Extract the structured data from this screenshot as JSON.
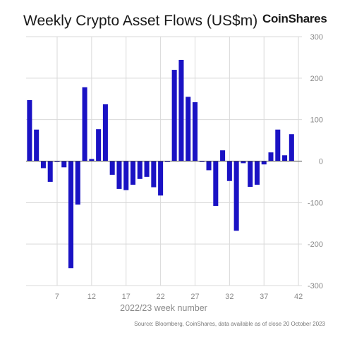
{
  "brand": "CoinShares",
  "source": "Source: Bloomberg, CoinShares, data available as of close 20 October 2023",
  "colors": {
    "bar": "#1a12c4",
    "grid": "#d9d9d9",
    "zero": "#444444"
  },
  "chart_data": {
    "type": "bar",
    "title": "Weekly Crypto Asset Flows (US$m)",
    "xlabel": "2022/23 week number",
    "ylabel": "",
    "ylim": [
      -300,
      300
    ],
    "yticks": [
      300,
      200,
      100,
      0,
      -100,
      -200,
      -300
    ],
    "xticks": [
      7,
      12,
      17,
      22,
      27,
      32,
      37,
      42
    ],
    "grid": true,
    "x": [
      3,
      4,
      5,
      6,
      7,
      8,
      9,
      10,
      11,
      12,
      13,
      14,
      15,
      16,
      17,
      18,
      19,
      20,
      21,
      22,
      23,
      24,
      25,
      26,
      27,
      28,
      29,
      30,
      31,
      32,
      33,
      34,
      35,
      36,
      37,
      38,
      39,
      40,
      41,
      42
    ],
    "values": [
      147,
      76,
      -17,
      -50,
      -2,
      -15,
      -258,
      -105,
      178,
      5,
      77,
      137,
      -33,
      -67,
      -70,
      -57,
      -43,
      -38,
      -63,
      -83,
      -2,
      220,
      244,
      155,
      142,
      -2,
      -22,
      -108,
      26,
      -48,
      -168,
      -5,
      -62,
      -57,
      -8,
      21,
      76,
      14,
      65,
      0
    ]
  }
}
